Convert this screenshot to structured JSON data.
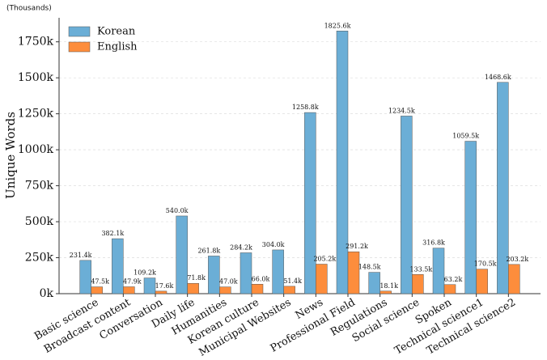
{
  "chart_data": {
    "type": "bar",
    "unit_note": "(Thousands)",
    "y_label": "Unique Words",
    "categories": [
      "Basic science",
      "Broadcast content",
      "Conversation",
      "Daily life",
      "Humanities",
      "Korean culture",
      "Municipal Websites",
      "News",
      "Professional Field",
      "Regulations",
      "Social science",
      "Spoken",
      "Technical science1",
      "Technical science2"
    ],
    "series": [
      {
        "name": "Korean",
        "color": "#6baed6",
        "values": [
          231.4,
          382.1,
          109.2,
          540.0,
          261.8,
          284.2,
          304.0,
          1258.8,
          1825.6,
          148.5,
          1234.5,
          316.8,
          1059.5,
          1468.6
        ],
        "value_labels": [
          "231.4k",
          "382.1k",
          "109.2k",
          "540.0k",
          "261.8k",
          "284.2k",
          "304.0k",
          "1258.8k",
          "1825.6k",
          "148.5k",
          "1234.5k",
          "316.8k",
          "1059.5k",
          "1468.6k"
        ]
      },
      {
        "name": "English",
        "color": "#fd8d3c",
        "values": [
          47.5,
          47.9,
          17.6,
          71.8,
          47.0,
          66.0,
          51.4,
          205.2,
          291.2,
          18.1,
          133.5,
          63.2,
          170.5,
          203.2
        ],
        "value_labels": [
          "47.5k",
          "47.9k",
          "17.6k",
          "71.8k",
          "47.0k",
          "66.0k",
          "51.4k",
          "205.2k",
          "291.2k",
          "18.1k",
          "133.5k",
          "63.2k",
          "170.5k",
          "203.2k"
        ]
      }
    ],
    "ylim": [
      0,
      1917
    ],
    "yticks": [
      {
        "value": 0,
        "label": "0k"
      },
      {
        "value": 250,
        "label": "250k"
      },
      {
        "value": 500,
        "label": "500k"
      },
      {
        "value": 750,
        "label": "750k"
      },
      {
        "value": 1000,
        "label": "1000k"
      },
      {
        "value": 1250,
        "label": "1250k"
      },
      {
        "value": 1500,
        "label": "1500k"
      },
      {
        "value": 1750,
        "label": "1750k"
      }
    ],
    "grid": true,
    "legend": "upper-left"
  }
}
